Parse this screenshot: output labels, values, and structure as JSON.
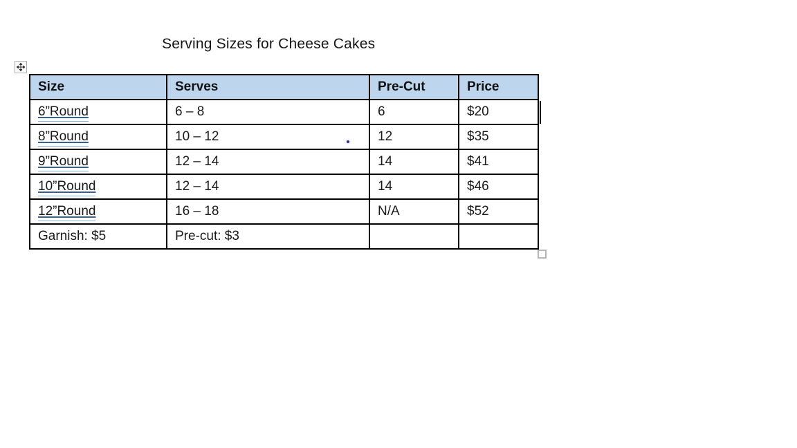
{
  "title": {
    "text": "Serving Sizes for Cheese Cakes"
  },
  "table": {
    "header": {
      "columns": [
        "Size",
        "Serves",
        "Pre-Cut",
        "Price"
      ],
      "bg_color": "#BDD6EE"
    },
    "rows": [
      {
        "size": "6”Round",
        "serves": "6 – 8",
        "precut": "6",
        "price": "$20",
        "size_flagged": true
      },
      {
        "size": "8”Round",
        "serves": "10 – 12",
        "precut": "12",
        "price": "$35",
        "size_flagged": true
      },
      {
        "size": "9”Round",
        "serves": "12 – 14",
        "precut": "14",
        "price": "$41",
        "size_flagged": true
      },
      {
        "size": "10”Round",
        "serves": "12 – 14",
        "precut": "14",
        "price": "$46",
        "size_flagged": true
      },
      {
        "size": "12”Round",
        "serves": "16 – 18",
        "precut": "N/A",
        "price": "$52",
        "size_flagged": true
      },
      {
        "size": "Garnish: $5",
        "serves": "Pre-cut: $3",
        "precut": "",
        "price": "",
        "size_flagged": false
      }
    ]
  },
  "artifacts": {
    "move_handle_icon": "four-arrow-move-cross",
    "resize_handle_icon": "table-resize-square",
    "text_cursor_visible": true,
    "stray_dot_visible": true
  },
  "colors": {
    "header_bg": "#BDD6EE",
    "table_border": "#000000",
    "grammar_underline_dark": "#36618E",
    "grammar_underline_light": "#7FAFDE",
    "text": "#1a1a1a"
  }
}
